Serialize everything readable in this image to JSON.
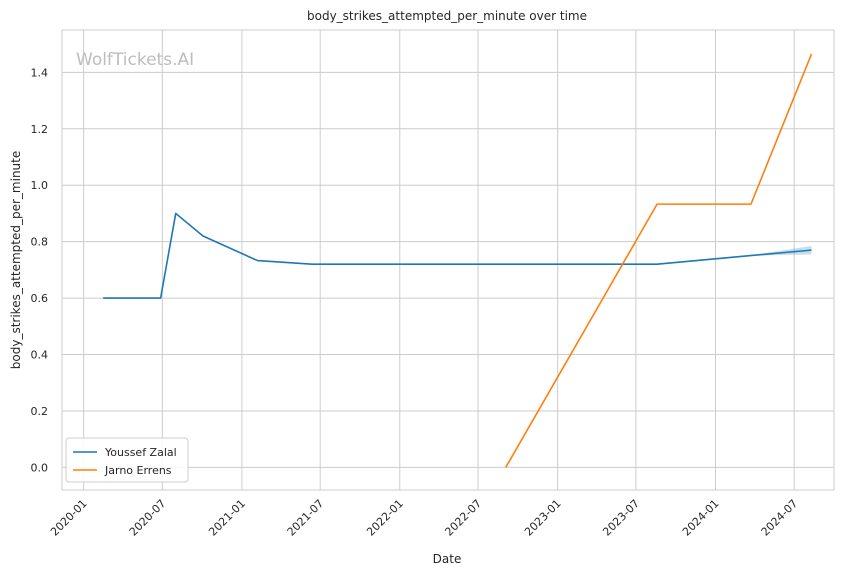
{
  "chart_data": {
    "type": "line",
    "title": "body_strikes_attempted_per_minute over time",
    "xlabel": "Date",
    "ylabel": "body_strikes_attempted_per_minute",
    "watermark": "WolfTickets.AI",
    "x_ticks": [
      "2020-01",
      "2020-07",
      "2021-01",
      "2021-07",
      "2022-01",
      "2022-07",
      "2023-01",
      "2023-07",
      "2024-01",
      "2024-07"
    ],
    "y_ticks": [
      "0.0",
      "0.2",
      "0.4",
      "0.6",
      "0.8",
      "1.0",
      "1.2",
      "1.4"
    ],
    "xlim": [
      "2019-11-12",
      "2024-10-01"
    ],
    "ylim": [
      -0.08,
      1.55
    ],
    "grid": true,
    "legend_position": "lower-left",
    "series": [
      {
        "name": "Youssef Zalal",
        "color": "#1f77b4",
        "x": [
          "2020-02-15",
          "2020-06-27",
          "2020-08-01",
          "2020-10-03",
          "2021-02-06",
          "2021-06-12",
          "2022-01-01",
          "2022-08-01",
          "2023-08-19",
          "2024-03-16",
          "2024-08-10"
        ],
        "y": [
          0.6,
          0.6,
          0.9,
          0.82,
          0.733,
          0.72,
          0.72,
          0.72,
          0.72,
          0.75,
          0.77
        ],
        "band_x": [
          "2024-03-16",
          "2024-08-10"
        ],
        "band_low": [
          0.75,
          0.755
        ],
        "band_high": [
          0.75,
          0.785
        ]
      },
      {
        "name": "Jarno Errens",
        "color": "#ff7f0e",
        "x": [
          "2022-09-03",
          "2023-08-19",
          "2024-03-23",
          "2024-08-10"
        ],
        "y": [
          0.0,
          0.933,
          0.933,
          1.465
        ]
      }
    ]
  }
}
